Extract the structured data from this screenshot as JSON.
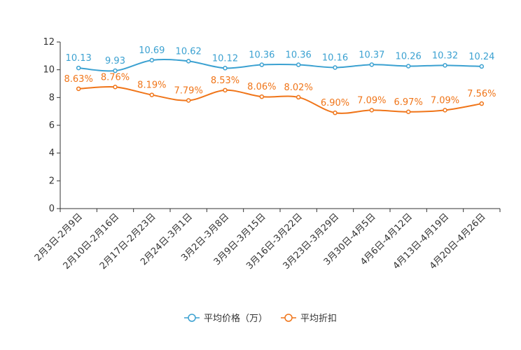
{
  "chart_data": {
    "type": "line",
    "categories": [
      "2月3日-2月9日",
      "2月10日-2月16日",
      "2月17日-2月23日",
      "2月24日-3月1日",
      "3月2日-3月8日",
      "3月9日-3月15日",
      "3月16日-3月22日",
      "3月23日-3月29日",
      "3月30日-4月5日",
      "4月6日-4月12日",
      "4月13日-4月19日",
      "4月20日-4月26日"
    ],
    "ylim": [
      0,
      12
    ],
    "yticks": [
      0,
      2,
      4,
      6,
      8,
      10,
      12
    ],
    "series": [
      {
        "name": "平均价格（万）",
        "color": "#3ba1d1",
        "values": [
          10.13,
          9.93,
          10.69,
          10.62,
          10.12,
          10.36,
          10.36,
          10.16,
          10.37,
          10.26,
          10.32,
          10.24
        ],
        "labels": [
          "10.13",
          "9.93",
          "10.69",
          "10.62",
          "10.12",
          "10.36",
          "10.36",
          "10.16",
          "10.37",
          "10.26",
          "10.32",
          "10.24"
        ]
      },
      {
        "name": "平均折扣",
        "color": "#f07519",
        "values": [
          8.63,
          8.76,
          8.19,
          7.79,
          8.53,
          8.06,
          8.02,
          6.9,
          7.09,
          6.97,
          7.09,
          7.56
        ],
        "labels": [
          "8.63%",
          "8.76%",
          "8.19%",
          "7.79%",
          "8.53%",
          "8.06%",
          "8.02%",
          "6.90%",
          "7.09%",
          "6.97%",
          "7.09%",
          "7.56%"
        ]
      }
    ],
    "legend": {
      "position": "bottom-center",
      "items": [
        "平均价格（万）",
        "平均折扣"
      ]
    },
    "title": "",
    "xlabel": "",
    "ylabel": ""
  }
}
